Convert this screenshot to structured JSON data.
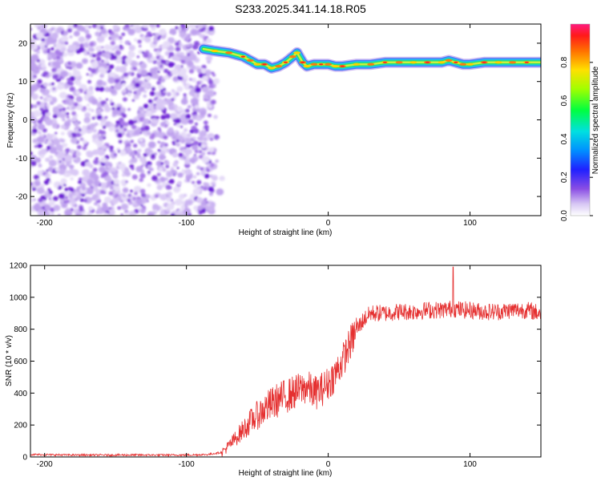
{
  "title": "S233.2025.341.14.18.R05",
  "chart_data": [
    {
      "type": "heatmap",
      "name": "spectrogram",
      "xlabel": "Height of straight line (km)",
      "ylabel": "Frequency (Hz)",
      "xlim": [
        -210,
        150
      ],
      "ylim": [
        -25,
        25
      ],
      "xticks": [
        -200,
        -100,
        0,
        100
      ],
      "yticks": [
        -20,
        -10,
        0,
        10,
        20
      ],
      "noise_region_x": [
        -210,
        -80
      ],
      "signal_trace": {
        "x": [
          -88,
          -80,
          -70,
          -60,
          -55,
          -50,
          -45,
          -40,
          -35,
          -30,
          -25,
          -22,
          -18,
          -15,
          -10,
          -5,
          0,
          5,
          10,
          20,
          30,
          40,
          50,
          60,
          70,
          80,
          85,
          90,
          95,
          100,
          110,
          120,
          130,
          140,
          150
        ],
        "freq": [
          18.5,
          18,
          17.5,
          16.5,
          15.5,
          14.5,
          14.5,
          13.5,
          14,
          15,
          16.5,
          17.5,
          15,
          14,
          14.5,
          14.5,
          14.5,
          14,
          14,
          14.5,
          14.5,
          15,
          15,
          15,
          15,
          15,
          15.5,
          15,
          14.5,
          14.5,
          15,
          15,
          15,
          15,
          15
        ]
      },
      "colorbar": {
        "label": "Normalized spectral amplitude",
        "ticks": [
          0.0,
          0.2,
          0.4,
          0.6,
          0.8
        ],
        "range": [
          0,
          1
        ]
      }
    },
    {
      "type": "line",
      "name": "snr",
      "xlabel": "Height of straight line (km)",
      "ylabel": "SNR (10 * v/v)",
      "xlim": [
        -210,
        150
      ],
      "ylim": [
        0,
        1200
      ],
      "xticks": [
        -200,
        -100,
        0,
        100
      ],
      "yticks": [
        0,
        200,
        400,
        600,
        800,
        1000,
        1200
      ],
      "color": "#e53030",
      "series": [
        {
          "name": "SNR",
          "x": [
            -210,
            -180,
            -150,
            -120,
            -100,
            -85,
            -75,
            -70,
            -65,
            -60,
            -55,
            -50,
            -45,
            -40,
            -35,
            -30,
            -25,
            -20,
            -15,
            -10,
            -5,
            0,
            5,
            10,
            15,
            20,
            25,
            30,
            40,
            50,
            60,
            70,
            80,
            88,
            95,
            100,
            110,
            120,
            130,
            140,
            150
          ],
          "values": [
            15,
            12,
            12,
            12,
            12,
            15,
            30,
            70,
            120,
            170,
            220,
            260,
            300,
            330,
            360,
            380,
            400,
            420,
            440,
            400,
            420,
            460,
            520,
            600,
            700,
            800,
            860,
            900,
            900,
            910,
            910,
            920,
            920,
            930,
            920,
            920,
            910,
            910,
            920,
            920,
            900
          ]
        }
      ]
    }
  ]
}
